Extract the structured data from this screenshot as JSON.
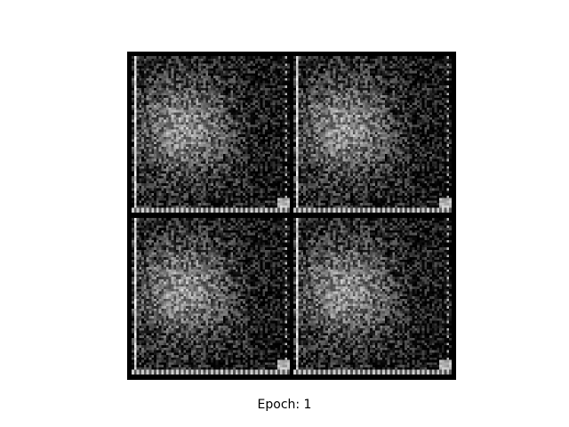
{
  "caption": "Epoch: 1",
  "grid": {
    "rows": 2,
    "cols": 2,
    "tile_count": 4,
    "colormap": "gray"
  },
  "colors": {
    "background": "#ffffff",
    "grid_background": "#000000",
    "caption_text": "#000000"
  }
}
